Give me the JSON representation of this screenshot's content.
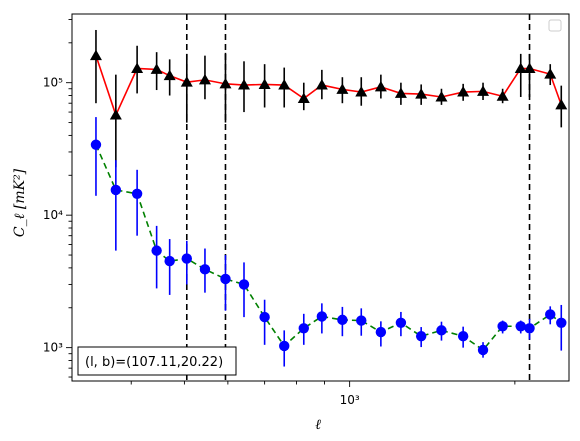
{
  "chart_data": {
    "type": "scatter",
    "title": "",
    "xlabel": "ℓ",
    "ylabel": "C_ℓ [mK²]",
    "xscale": "log",
    "yscale": "log",
    "xlim": [
      312,
      2510
    ],
    "ylim": [
      560,
      330000
    ],
    "grid": false,
    "legend": {
      "placement": "top-right",
      "entries": []
    },
    "x_ticks": [
      {
        "value": 1000,
        "label": "10³"
      }
    ],
    "y_ticks": [
      {
        "value": 1000,
        "label": "10³"
      },
      {
        "value": 10000,
        "label": "10⁴"
      },
      {
        "value": 100000,
        "label": "10⁵"
      }
    ],
    "vlines": [
      {
        "x": 505,
        "style": "dashed",
        "color": "#000000"
      },
      {
        "x": 594,
        "style": "dashed",
        "color": "#000000"
      },
      {
        "x": 2127,
        "style": "dashed",
        "color": "#000000"
      }
    ],
    "annotation": {
      "text": "(l, b)=(107.11,20.22)",
      "placement": "bottom-left"
    },
    "series": [
      {
        "marker": "triangle",
        "marker_color": "#000000",
        "errorbar_color": "#000000",
        "line_color": "#ff0000",
        "line_style": "solid",
        "x": [
          345,
          375,
          410,
          445,
          470,
          505,
          545,
          594,
          642,
          700,
          760,
          825,
          890,
          970,
          1050,
          1140,
          1240,
          1350,
          1470,
          1610,
          1750,
          1900,
          2050,
          2127,
          2320,
          2430
        ],
        "y": [
          160000,
          57000,
          128000,
          126000,
          113000,
          101000,
          105000,
          98000,
          96000,
          97000,
          96000,
          76000,
          96000,
          89000,
          85000,
          93000,
          83000,
          82000,
          78000,
          85000,
          86000,
          79000,
          128000,
          128000,
          116000,
          68000
        ],
        "y_low": [
          70000,
          23000,
          83000,
          88000,
          80000,
          50000,
          75000,
          50000,
          60000,
          65000,
          65000,
          62000,
          75000,
          70000,
          67000,
          76000,
          68000,
          68000,
          68000,
          73000,
          74000,
          70000,
          78000,
          78000,
          96000,
          46000
        ],
        "y_high": [
          250000,
          115000,
          190000,
          170000,
          150000,
          165000,
          160000,
          168000,
          145000,
          138000,
          130000,
          100000,
          125000,
          110000,
          110000,
          115000,
          100000,
          97000,
          90000,
          98000,
          100000,
          90000,
          165000,
          165000,
          138000,
          95000
        ]
      },
      {
        "marker": "circle",
        "marker_color": "#0000ff",
        "errorbar_color": "#0000ff",
        "line_color": "#008000",
        "line_style": "dashed",
        "x": [
          345,
          375,
          410,
          445,
          470,
          505,
          545,
          594,
          642,
          700,
          760,
          825,
          890,
          970,
          1050,
          1140,
          1240,
          1350,
          1470,
          1610,
          1750,
          1900,
          2050,
          2127,
          2320,
          2430
        ],
        "y": [
          34000,
          15500,
          14500,
          5400,
          4500,
          4700,
          3900,
          3300,
          3000,
          1700,
          1030,
          1400,
          1720,
          1620,
          1600,
          1310,
          1540,
          1220,
          1350,
          1220,
          960,
          1450,
          1450,
          1400,
          1780,
          1540
        ],
        "y_low": [
          14000,
          5400,
          7000,
          2800,
          2500,
          3000,
          2600,
          1900,
          1700,
          1050,
          720,
          1050,
          1280,
          1220,
          1230,
          1020,
          1220,
          1010,
          1130,
          1000,
          840,
          1280,
          1280,
          1150,
          1500,
          950
        ],
        "y_high": [
          55000,
          26000,
          22000,
          8300,
          6600,
          6400,
          5600,
          5000,
          4400,
          2300,
          1350,
          1800,
          2160,
          2030,
          1980,
          1580,
          1860,
          1430,
          1570,
          1440,
          1100,
          1600,
          1600,
          1650,
          2050,
          2100
        ]
      }
    ]
  }
}
